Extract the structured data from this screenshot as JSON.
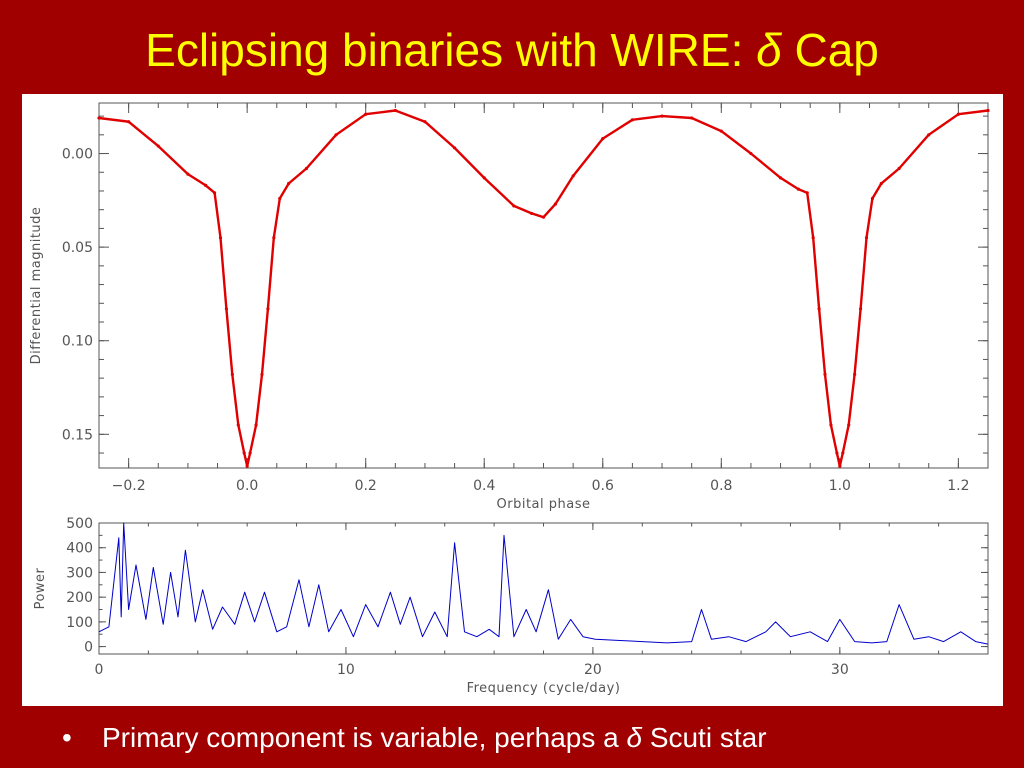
{
  "slide": {
    "title_main": "Eclipsing binaries with WIRE:",
    "title_symbol": "δ",
    "title_star": "Cap",
    "bullet_marker": "•",
    "bullet_text_before": "Primary component is variable, perhaps a",
    "bullet_symbol": "δ",
    "bullet_text_after": "Scuti star"
  },
  "colors": {
    "background": "#a00000",
    "title": "#ffff00",
    "bullet": "#ffffff",
    "light_curve": "#e00000",
    "periodogram": "#0000cc",
    "axes": "#555555"
  },
  "chart_data": [
    {
      "type": "scatter",
      "xlabel": "Orbital phase",
      "ylabel": "Differential magnitude",
      "xlim": [
        -0.25,
        1.25
      ],
      "ylim": [
        0.168,
        -0.027
      ],
      "y_inverted": true,
      "xticks": [
        -0.2,
        0.0,
        0.2,
        0.4,
        0.6,
        0.8,
        1.0,
        1.2
      ],
      "xtick_labels": [
        "−0.2",
        "0.0",
        "0.2",
        "0.4",
        "0.6",
        "0.8",
        "1.0",
        "1.2"
      ],
      "yticks": [
        0.0,
        0.05,
        0.1,
        0.15
      ],
      "ytick_labels": [
        "0.00",
        "0.05",
        "0.10",
        "0.15"
      ],
      "series": [
        {
          "color": "#e00000",
          "x": [
            -0.25,
            -0.2,
            -0.15,
            -0.1,
            -0.07,
            -0.055,
            -0.045,
            -0.035,
            -0.025,
            -0.015,
            -0.005,
            0.0,
            0.005,
            0.015,
            0.025,
            0.035,
            0.045,
            0.055,
            0.07,
            0.1,
            0.15,
            0.2,
            0.25,
            0.3,
            0.35,
            0.4,
            0.45,
            0.48,
            0.5,
            0.52,
            0.55,
            0.6,
            0.65,
            0.7,
            0.75,
            0.8,
            0.85,
            0.9,
            0.93,
            0.945,
            0.955,
            0.965,
            0.975,
            0.985,
            0.995,
            1.0,
            1.005,
            1.015,
            1.025,
            1.035,
            1.045,
            1.055,
            1.07,
            1.1,
            1.15,
            1.2,
            1.25
          ],
          "y": [
            -0.019,
            -0.017,
            -0.004,
            0.011,
            0.017,
            0.021,
            0.045,
            0.083,
            0.118,
            0.145,
            0.16,
            0.167,
            0.16,
            0.145,
            0.118,
            0.083,
            0.045,
            0.024,
            0.016,
            0.008,
            -0.01,
            -0.021,
            -0.023,
            -0.017,
            -0.003,
            0.013,
            0.028,
            0.032,
            0.034,
            0.027,
            0.012,
            -0.008,
            -0.018,
            -0.02,
            -0.019,
            -0.012,
            0.0,
            0.013,
            0.019,
            0.021,
            0.045,
            0.083,
            0.118,
            0.145,
            0.16,
            0.167,
            0.16,
            0.145,
            0.118,
            0.083,
            0.045,
            0.024,
            0.016,
            0.008,
            -0.01,
            -0.021,
            -0.023
          ]
        }
      ]
    },
    {
      "type": "line",
      "xlabel": "Frequency (cycle/day)",
      "ylabel": "Power",
      "xlim": [
        0,
        36
      ],
      "ylim": [
        -30,
        500
      ],
      "xticks": [
        0,
        10,
        20,
        30
      ],
      "xtick_labels": [
        "0",
        "10",
        "20",
        "30"
      ],
      "yticks": [
        0,
        100,
        200,
        300,
        400,
        500
      ],
      "ytick_labels": [
        "0",
        "100",
        "200",
        "300",
        "400",
        "500"
      ],
      "series": [
        {
          "color": "#0000cc",
          "x": [
            0.0,
            0.4,
            0.8,
            0.9,
            1.0,
            1.2,
            1.5,
            1.9,
            2.2,
            2.6,
            2.9,
            3.2,
            3.5,
            3.9,
            4.2,
            4.6,
            5.0,
            5.5,
            5.9,
            6.3,
            6.7,
            7.2,
            7.6,
            8.1,
            8.5,
            8.9,
            9.3,
            9.8,
            10.3,
            10.8,
            11.3,
            11.8,
            12.2,
            12.6,
            13.1,
            13.6,
            14.1,
            14.4,
            14.8,
            15.3,
            15.8,
            16.2,
            16.4,
            16.8,
            17.3,
            17.7,
            18.2,
            18.6,
            19.1,
            19.6,
            20.1,
            21.0,
            22.0,
            23.0,
            24.0,
            24.4,
            24.8,
            25.5,
            26.2,
            27.0,
            27.4,
            28.0,
            28.8,
            29.5,
            30.0,
            30.6,
            31.3,
            31.9,
            32.4,
            33.0,
            33.6,
            34.2,
            34.9,
            35.5,
            36.0
          ],
          "y": [
            60,
            80,
            440,
            120,
            500,
            150,
            330,
            110,
            320,
            90,
            300,
            120,
            390,
            100,
            230,
            70,
            160,
            90,
            220,
            100,
            220,
            60,
            80,
            270,
            80,
            250,
            60,
            150,
            40,
            170,
            80,
            220,
            90,
            200,
            40,
            140,
            40,
            420,
            60,
            40,
            70,
            40,
            450,
            40,
            150,
            60,
            230,
            30,
            110,
            40,
            30,
            25,
            20,
            15,
            20,
            150,
            30,
            40,
            20,
            60,
            100,
            40,
            60,
            20,
            110,
            20,
            15,
            20,
            170,
            30,
            40,
            20,
            60,
            20,
            10
          ]
        }
      ]
    }
  ]
}
